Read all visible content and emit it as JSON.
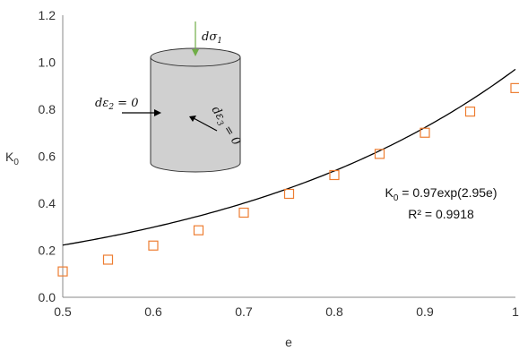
{
  "chart_data": {
    "type": "scatter",
    "title": "",
    "xlabel": "e",
    "ylabel": "K",
    "ylabel_sub": "0",
    "xlim": [
      0.5,
      1.0
    ],
    "ylim": [
      0.0,
      1.2
    ],
    "x_ticks": [
      0.5,
      0.6,
      0.7,
      0.8,
      0.9,
      1.0
    ],
    "x_tick_labels": [
      "0.5",
      "0.6",
      "0.7",
      "0.8",
      "0.9",
      "1"
    ],
    "y_ticks": [
      0.0,
      0.2,
      0.4,
      0.6,
      0.8,
      1.0,
      1.2
    ],
    "y_tick_labels": [
      "0.0",
      "0.2",
      "0.4",
      "0.6",
      "0.8",
      "1.0",
      "1.2"
    ],
    "grid": false,
    "marker_color": "#ED7D31",
    "curve_color": "#000000",
    "series": [
      {
        "x": [
          0.5,
          0.55,
          0.6,
          0.65,
          0.7,
          0.75,
          0.8,
          0.85,
          0.9,
          0.95,
          1.0
        ],
        "y": [
          0.11,
          0.16,
          0.22,
          0.285,
          0.36,
          0.44,
          0.52,
          0.61,
          0.7,
          0.79,
          0.89
        ]
      }
    ],
    "fit": {
      "a": 0.97,
      "b": 2.95
    },
    "equation": {
      "k": "K",
      "sub": "0",
      "rest": " = 0.97exp(2.95e)"
    },
    "r_squared_label": "R² = 0.9918",
    "inset": {
      "fill_color": "#D0D0D0",
      "arrow_color": "#70AD47",
      "label_sigma": {
        "d": "dσ",
        "sub": "1"
      },
      "label_eps2": {
        "d": "dε",
        "sub": "2",
        "rest": " = 0"
      },
      "label_eps3": {
        "d": "dε",
        "sub": "3",
        "rest": " = 0"
      }
    }
  }
}
